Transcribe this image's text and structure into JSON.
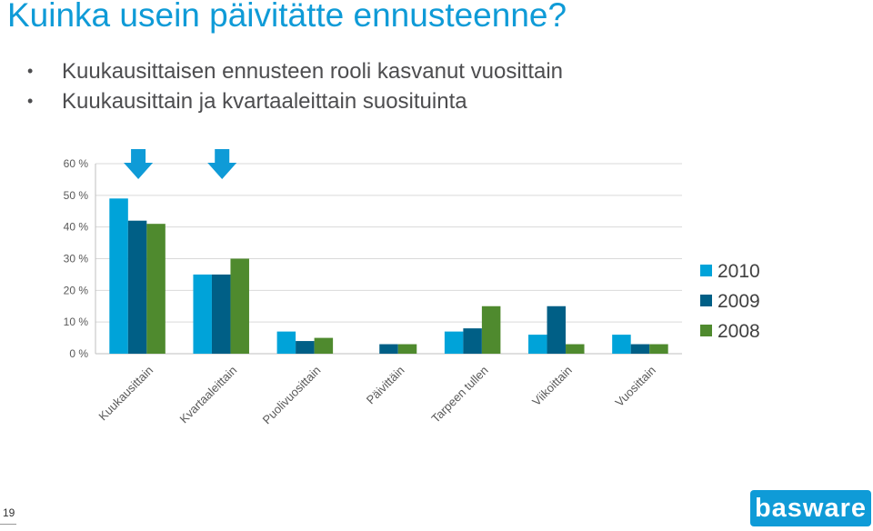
{
  "slide": {
    "title": "Kuinka usein päivitätte ennusteenne?",
    "bullets": [
      "Kuukausittaisen ennusteen rooli kasvanut vuosittain",
      "Kuukausittain ja kvartaaleittain suosituinta"
    ],
    "page_number": "19",
    "logo_text": "basware"
  },
  "colors": {
    "title": "#0f9bd7",
    "arrow": "#0f9bd7",
    "logo_bg": "#0f9bd7"
  },
  "chart_data": {
    "type": "bar",
    "categories": [
      "Kuukausittain",
      "Kvartaaleittain",
      "Puolivuosittain",
      "Päivittäin",
      "Tarpeen tullen",
      "Viikoittain",
      "Vuosittain"
    ],
    "series": [
      {
        "name": "2010",
        "color": "#00a3d9",
        "values": [
          49,
          25,
          7,
          0,
          7,
          6,
          6
        ]
      },
      {
        "name": "2009",
        "color": "#005f86",
        "values": [
          42,
          25,
          4,
          3,
          8,
          15,
          3
        ]
      },
      {
        "name": "2008",
        "color": "#4f8a2e",
        "values": [
          41,
          30,
          5,
          3,
          15,
          3,
          3
        ]
      }
    ],
    "yticks": [
      "0 %",
      "10 %",
      "20 %",
      "30 %",
      "40 %",
      "50 %",
      "60 %"
    ],
    "ylim": [
      0,
      60
    ],
    "grid": true,
    "legend": "right",
    "highlighted_categories": [
      "Kuukausittain",
      "Kvartaaleittain"
    ]
  }
}
